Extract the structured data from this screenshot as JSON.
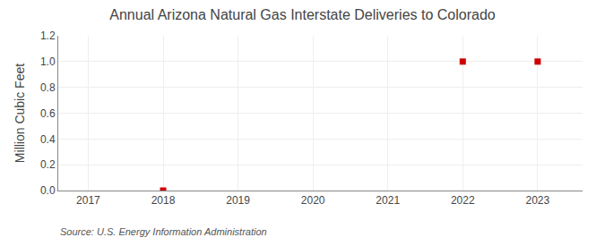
{
  "chart_data": {
    "type": "scatter",
    "title": "Annual Arizona Natural Gas Interstate Deliveries to Colorado",
    "ylabel": "Million Cubic Feet",
    "annotations": [
      "Source: U.S. Energy Information Administration"
    ],
    "x": [
      2018,
      2022,
      2023
    ],
    "values": [
      0.0,
      1.0,
      1.0
    ],
    "color": "#cc0000",
    "marker": "square",
    "xlim": [
      2016.6,
      2023.6
    ],
    "xticks": [
      2017,
      2018,
      2019,
      2020,
      2021,
      2022,
      2023
    ],
    "ylim": [
      0.0,
      1.2
    ],
    "yticks": [
      {
        "value": 0.0,
        "label": "0.0"
      },
      0.2,
      0.4,
      0.6,
      0.8,
      {
        "value": 1.0,
        "label": "1.0"
      },
      1.2
    ],
    "grid": true
  }
}
